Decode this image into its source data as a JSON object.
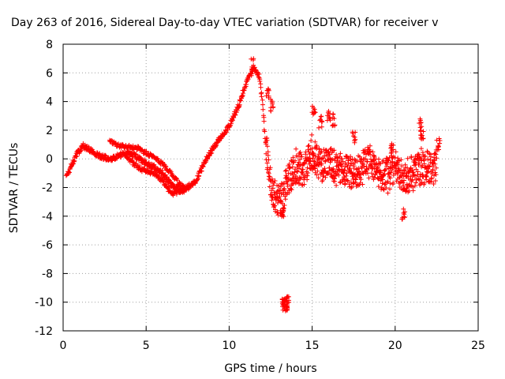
{
  "chart_data": {
    "type": "scatter",
    "title": "Day 263 of 2016, Sidereal Day-to-day VTEC variation (SDTVAR) for receiver v",
    "xlabel": "GPS time / hours",
    "ylabel": "SDTVAR / TECUs",
    "xlim": [
      0,
      25
    ],
    "ylim": [
      -12,
      8
    ],
    "xticks": [
      0,
      5,
      10,
      15,
      20,
      25
    ],
    "yticks": [
      -12,
      -10,
      -8,
      -6,
      -4,
      -2,
      0,
      2,
      4,
      6,
      8
    ],
    "grid": true,
    "marker": "+",
    "series": [
      {
        "name": "SDTVAR",
        "color": "#ff0000",
        "trend": [
          [
            0.2,
            -1.2
          ],
          [
            0.5,
            -0.5
          ],
          [
            0.8,
            0.3
          ],
          [
            1.2,
            0.9
          ],
          [
            1.5,
            0.7
          ],
          [
            2.0,
            0.3
          ],
          [
            2.5,
            0.1
          ],
          [
            3.0,
            0.0
          ],
          [
            3.5,
            0.3
          ],
          [
            4.0,
            0.4
          ],
          [
            4.5,
            0.1
          ],
          [
            5.0,
            -0.3
          ],
          [
            5.5,
            -0.6
          ],
          [
            6.0,
            -1.0
          ],
          [
            6.5,
            -1.8
          ],
          [
            7.0,
            -2.2
          ],
          [
            7.5,
            -2.0
          ],
          [
            8.0,
            -1.5
          ],
          [
            8.5,
            -0.3
          ],
          [
            9.0,
            0.7
          ],
          [
            9.5,
            1.5
          ],
          [
            10.0,
            2.3
          ],
          [
            10.5,
            3.5
          ],
          [
            11.0,
            5.2
          ],
          [
            11.5,
            6.3
          ],
          [
            11.8,
            5.8
          ],
          [
            12.0,
            4.0
          ],
          [
            12.2,
            1.0
          ],
          [
            12.5,
            -1.5
          ],
          [
            12.8,
            -2.8
          ],
          [
            13.2,
            -3.0
          ],
          [
            13.5,
            -1.5
          ],
          [
            14.0,
            -0.5
          ],
          [
            14.5,
            -1.0
          ],
          [
            15.0,
            0.5
          ],
          [
            15.5,
            -0.5
          ],
          [
            16.0,
            0.0
          ],
          [
            16.5,
            -1.0
          ],
          [
            17.0,
            -0.8
          ],
          [
            17.5,
            -1.2
          ],
          [
            18.0,
            -0.5
          ],
          [
            18.5,
            -0.3
          ],
          [
            19.0,
            -1.0
          ],
          [
            19.5,
            -1.2
          ],
          [
            20.0,
            -0.6
          ],
          [
            20.5,
            -1.5
          ],
          [
            21.0,
            -1.0
          ],
          [
            21.5,
            -0.5
          ],
          [
            22.0,
            -0.8
          ],
          [
            22.5,
            -0.4
          ]
        ],
        "upper_branch": [
          [
            2.8,
            1.2
          ],
          [
            3.5,
            0.9
          ],
          [
            4.0,
            0.8
          ],
          [
            4.6,
            0.7
          ],
          [
            5.0,
            0.4
          ],
          [
            5.5,
            0.1
          ],
          [
            6.0,
            -0.4
          ],
          [
            6.5,
            -1.0
          ],
          [
            7.0,
            -1.8
          ],
          [
            7.3,
            -2.0
          ]
        ],
        "lower_branch": [
          [
            3.8,
            0.2
          ],
          [
            4.2,
            -0.3
          ],
          [
            4.8,
            -0.8
          ],
          [
            5.2,
            -0.9
          ],
          [
            5.8,
            -1.3
          ],
          [
            6.2,
            -1.9
          ],
          [
            6.6,
            -2.5
          ],
          [
            7.0,
            -2.3
          ],
          [
            7.5,
            -2.1
          ]
        ],
        "spikes": [
          [
            11.4,
            7.0
          ],
          [
            12.3,
            5.0
          ],
          [
            12.6,
            4.2
          ],
          [
            13.2,
            -3.4
          ],
          [
            15.1,
            3.8
          ],
          [
            15.5,
            3.0
          ],
          [
            16.0,
            3.5
          ],
          [
            16.3,
            3.2
          ],
          [
            17.5,
            1.9
          ],
          [
            19.8,
            1.2
          ],
          [
            20.5,
            -3.5
          ],
          [
            21.5,
            2.8
          ],
          [
            21.6,
            2.2
          ],
          [
            22.6,
            1.5
          ]
        ],
        "cluster": {
          "x_range": [
            13.2,
            13.6
          ],
          "y_range": [
            -10.8,
            -9.6
          ]
        }
      }
    ]
  }
}
